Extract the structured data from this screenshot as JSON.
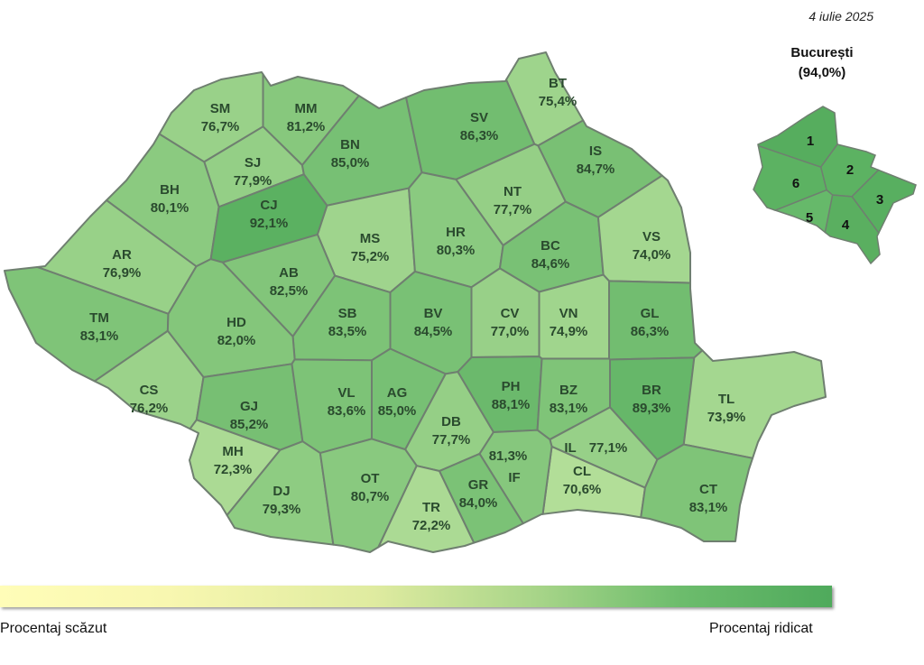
{
  "date": "4 iulie 2025",
  "bucharest": {
    "title": "București",
    "value_label": "(94,0%)",
    "value": 94.0,
    "sectors": [
      "1",
      "2",
      "3",
      "4",
      "5",
      "6"
    ]
  },
  "legend": {
    "low_label": "Procentaj scăzut",
    "high_label": "Procentaj ridicat",
    "low_color": "#fffdb8",
    "high_color": "#4faa5c"
  },
  "counties": [
    {
      "code": "SM",
      "value": 76.7,
      "label": "76,7%"
    },
    {
      "code": "MM",
      "value": 81.2,
      "label": "81,2%"
    },
    {
      "code": "SJ",
      "value": 77.9,
      "label": "77,9%"
    },
    {
      "code": "BH",
      "value": 80.1,
      "label": "80,1%"
    },
    {
      "code": "CJ",
      "value": 92.1,
      "label": "92,1%"
    },
    {
      "code": "BN",
      "value": 85.0,
      "label": "85,0%"
    },
    {
      "code": "SV",
      "value": 86.3,
      "label": "86,3%"
    },
    {
      "code": "BT",
      "value": 75.4,
      "label": "75,4%"
    },
    {
      "code": "IS",
      "value": 84.7,
      "label": "84,7%"
    },
    {
      "code": "NT",
      "value": 77.7,
      "label": "77,7%"
    },
    {
      "code": "MS",
      "value": 75.2,
      "label": "75,2%"
    },
    {
      "code": "HR",
      "value": 80.3,
      "label": "80,3%"
    },
    {
      "code": "BC",
      "value": 84.6,
      "label": "84,6%"
    },
    {
      "code": "VS",
      "value": 74.0,
      "label": "74,0%"
    },
    {
      "code": "AR",
      "value": 76.9,
      "label": "76,9%"
    },
    {
      "code": "AB",
      "value": 82.5,
      "label": "82,5%"
    },
    {
      "code": "SB",
      "value": 83.5,
      "label": "83,5%"
    },
    {
      "code": "BV",
      "value": 84.5,
      "label": "84,5%"
    },
    {
      "code": "CV",
      "value": 77.0,
      "label": "77,0%"
    },
    {
      "code": "VN",
      "value": 74.9,
      "label": "74,9%"
    },
    {
      "code": "GL",
      "value": 86.3,
      "label": "86,3%"
    },
    {
      "code": "TM",
      "value": 83.1,
      "label": "83,1%"
    },
    {
      "code": "HD",
      "value": 82.0,
      "label": "82,0%"
    },
    {
      "code": "CS",
      "value": 76.2,
      "label": "76,2%"
    },
    {
      "code": "GJ",
      "value": 85.2,
      "label": "85,2%"
    },
    {
      "code": "VL",
      "value": 83.6,
      "label": "83,6%"
    },
    {
      "code": "AG",
      "value": 85.0,
      "label": "85,0%"
    },
    {
      "code": "PH",
      "value": 88.1,
      "label": "88,1%"
    },
    {
      "code": "BZ",
      "value": 83.1,
      "label": "83,1%"
    },
    {
      "code": "BR",
      "value": 89.3,
      "label": "89,3%"
    },
    {
      "code": "TL",
      "value": 73.9,
      "label": "73,9%"
    },
    {
      "code": "DB",
      "value": 77.7,
      "label": "77,7%"
    },
    {
      "code": "MH",
      "value": 72.3,
      "label": "72,3%"
    },
    {
      "code": "IL",
      "value": 77.1,
      "label": "77,1%"
    },
    {
      "code": "CL",
      "value": 70.6,
      "label": "70,6%"
    },
    {
      "code": "IF",
      "value": 81.3,
      "label": "81,3%"
    },
    {
      "code": "GR",
      "value": 84.0,
      "label": "84,0%"
    },
    {
      "code": "DJ",
      "value": 79.3,
      "label": "79,3%"
    },
    {
      "code": "OT",
      "value": 80.7,
      "label": "80,7%"
    },
    {
      "code": "TR",
      "value": 72.2,
      "label": "72,2%"
    },
    {
      "code": "CT",
      "value": 83.1,
      "label": "83,1%"
    }
  ]
}
